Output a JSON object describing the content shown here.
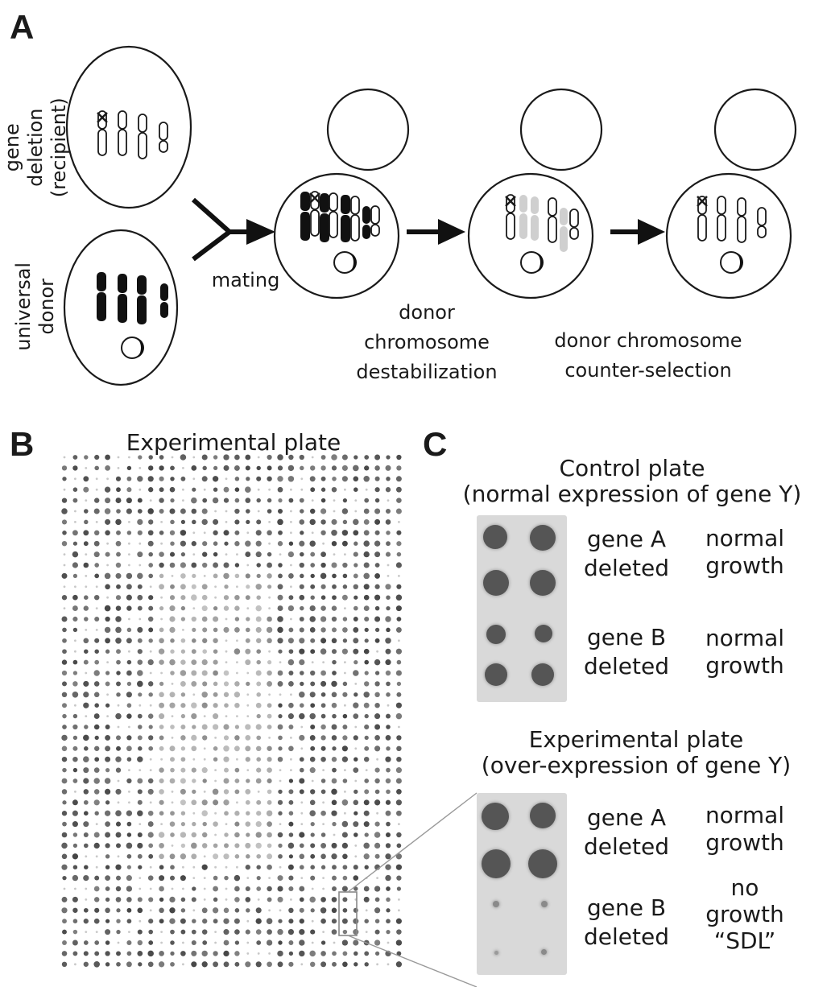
{
  "panels": {
    "a": {
      "letter": "A",
      "recipient_label": "gene deletion\n(recipient)",
      "donor_label": "universal\ndonor",
      "mating_label": "mating",
      "destabilization_label": "donor\nchromosome\ndestabilization",
      "counterselection_label": "donor chromosome\ncounter-selection"
    },
    "b": {
      "letter": "B",
      "title": "Experimental plate"
    },
    "c": {
      "letter": "C",
      "control_title": "Control plate\n(normal expression of gene Y)",
      "experimental_title": "Experimental plate\n(over-expression of gene Y)",
      "control_rows": [
        {
          "gene": "gene A\ndeleted",
          "phenotype": "normal\ngrowth"
        },
        {
          "gene": "gene B\ndeleted",
          "phenotype": "normal\ngrowth"
        }
      ],
      "experimental_rows": [
        {
          "gene": "gene A\ndeleted",
          "phenotype": "normal\ngrowth"
        },
        {
          "gene": "gene B\ndeleted",
          "phenotype": "no\ngrowth\n“SDL”"
        }
      ]
    }
  },
  "colors": {
    "ink": "#1a1a1a",
    "donor_chromosome": "#111111",
    "faded_chromosome": "#cfcfcf",
    "plate_background": "#d9d9d9",
    "colony": "#555555"
  }
}
